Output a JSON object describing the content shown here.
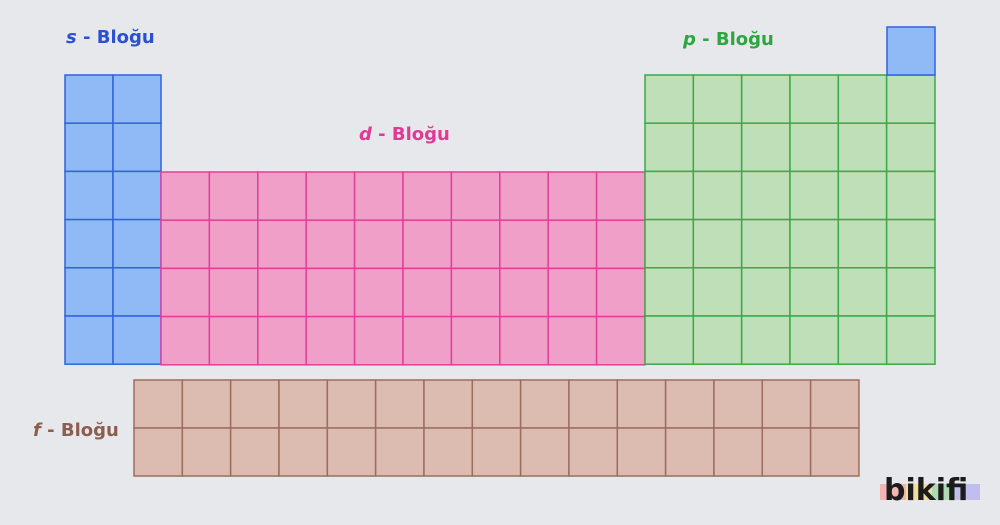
{
  "blocks": [
    {
      "letter": "s",
      "suffix": "- Bloğu"
    },
    {
      "letter": "d",
      "suffix": "- Bloğu"
    },
    {
      "letter": "p",
      "suffix": "- Bloğu"
    },
    {
      "letter": "f",
      "suffix": "- Bloğu"
    }
  ],
  "logo": "bikifi"
}
